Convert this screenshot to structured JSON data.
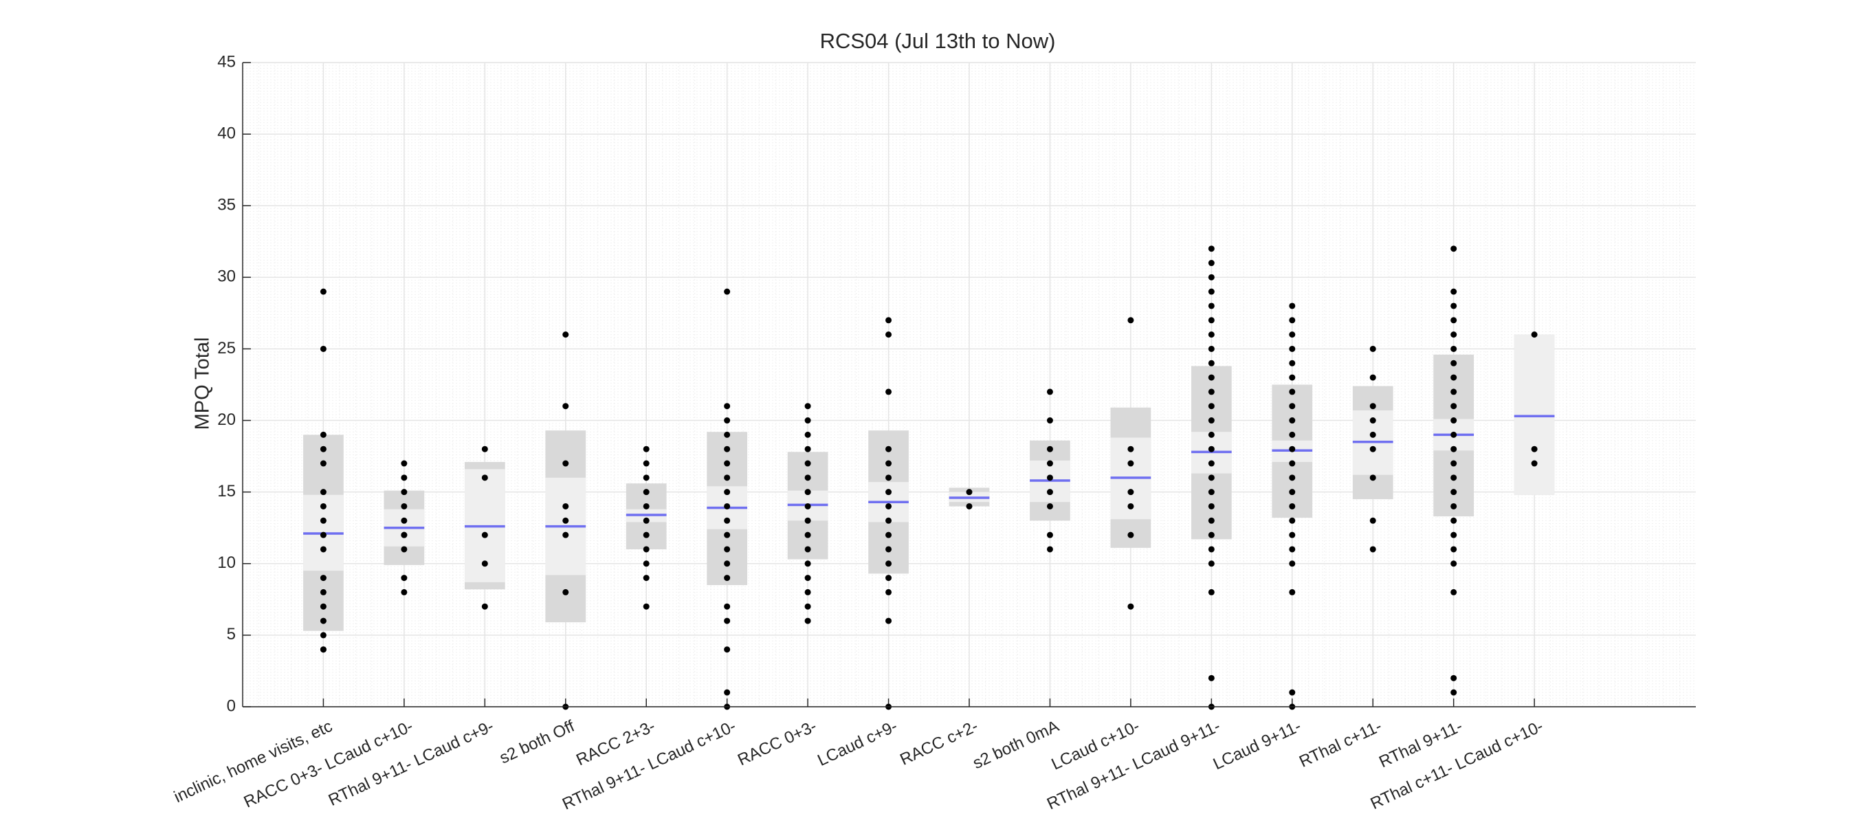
{
  "chart_data": {
    "type": "notboxplot",
    "title": "RCS04 (Jul 13th to Now)",
    "ylabel": "MPQ Total",
    "xlim": [
      0,
      18
    ],
    "ylim": [
      0,
      45
    ],
    "yticks": [
      0,
      5,
      10,
      15,
      20,
      25,
      30,
      35,
      40,
      45
    ],
    "grid": true,
    "colors": {
      "sd": "#d9d9d9",
      "ci": "#efefef",
      "mean": "#6f6ff0",
      "point": "#000000"
    },
    "categories": [
      "inclinic, home visits, etc",
      "RACC 0+3- LCaud c+10-",
      "RThal 9+11- LCaud c+9-",
      "s2 both Off",
      "RACC 2+3-",
      "RThal 9+11- LCaud c+10-",
      "RACC 0+3-",
      "LCaud c+9-",
      "RACC c+2-",
      "s2 both 0mA",
      "LCaud c+10-",
      "RThal 9+11- LCaud 9+11-",
      "LCaud 9+11-",
      "RThal c+11-",
      "RThal 9+11-",
      "RThal c+11- LCaud c+10-"
    ],
    "groups": [
      {
        "mean": 12.1,
        "sd_low": 5.3,
        "sd_high": 19.0,
        "ci_low": 9.5,
        "ci_high": 14.8,
        "points": [
          29,
          25,
          19,
          18,
          17,
          15,
          14,
          13,
          12,
          11,
          9,
          8,
          7,
          6,
          5,
          4,
          4
        ]
      },
      {
        "mean": 12.5,
        "sd_low": 9.9,
        "sd_high": 15.1,
        "ci_low": 11.2,
        "ci_high": 13.8,
        "points": [
          17,
          16,
          15,
          14,
          13,
          12,
          12,
          11,
          9,
          8
        ]
      },
      {
        "mean": 12.6,
        "sd_low": 8.2,
        "sd_high": 17.1,
        "ci_low": 8.7,
        "ci_high": 16.6,
        "points": [
          18,
          16,
          12,
          10,
          7
        ]
      },
      {
        "mean": 12.6,
        "sd_low": 5.9,
        "sd_high": 19.3,
        "ci_low": 9.2,
        "ci_high": 16.0,
        "points": [
          26,
          21,
          17,
          14,
          13,
          12,
          8,
          0
        ]
      },
      {
        "mean": 13.4,
        "sd_low": 11.0,
        "sd_high": 15.6,
        "ci_low": 12.9,
        "ci_high": 13.8,
        "points": [
          18,
          17,
          16,
          15,
          14,
          13,
          12,
          11,
          10,
          9,
          7
        ]
      },
      {
        "mean": 13.9,
        "sd_low": 8.5,
        "sd_high": 19.2,
        "ci_low": 12.4,
        "ci_high": 15.4,
        "points": [
          29,
          21,
          20,
          19,
          18,
          17,
          16,
          15,
          14,
          13,
          12,
          11,
          10,
          9,
          7,
          6,
          4,
          1,
          0
        ]
      },
      {
        "mean": 14.1,
        "sd_low": 10.3,
        "sd_high": 17.8,
        "ci_low": 13.0,
        "ci_high": 15.1,
        "points": [
          21,
          20,
          19,
          18,
          17,
          16,
          15,
          14,
          13,
          12,
          11,
          10,
          9,
          8,
          7,
          6
        ]
      },
      {
        "mean": 14.3,
        "sd_low": 9.3,
        "sd_high": 19.3,
        "ci_low": 12.9,
        "ci_high": 15.7,
        "points": [
          27,
          26,
          22,
          18,
          17,
          16,
          15,
          14,
          13,
          12,
          11,
          10,
          9,
          8,
          6,
          0
        ]
      },
      {
        "mean": 14.6,
        "sd_low": 14.0,
        "sd_high": 15.3,
        "ci_low": 14.3,
        "ci_high": 15.0,
        "points": [
          15,
          14
        ]
      },
      {
        "mean": 15.8,
        "sd_low": 13.0,
        "sd_high": 18.6,
        "ci_low": 14.3,
        "ci_high": 17.2,
        "points": [
          22,
          20,
          18,
          17,
          16,
          15,
          14,
          12,
          11
        ]
      },
      {
        "mean": 16.0,
        "sd_low": 11.1,
        "sd_high": 20.9,
        "ci_low": 13.1,
        "ci_high": 18.8,
        "points": [
          27,
          18,
          17,
          15,
          14,
          12,
          7
        ]
      },
      {
        "mean": 17.8,
        "sd_low": 11.7,
        "sd_high": 23.8,
        "ci_low": 16.3,
        "ci_high": 19.2,
        "points": [
          32,
          31,
          30,
          29,
          28,
          27,
          26,
          25,
          24,
          23,
          22,
          21,
          20,
          19,
          18,
          17,
          16,
          15,
          14,
          13,
          12,
          11,
          10,
          8,
          2,
          0
        ]
      },
      {
        "mean": 17.9,
        "sd_low": 13.2,
        "sd_high": 22.5,
        "ci_low": 17.1,
        "ci_high": 18.6,
        "points": [
          28,
          27,
          26,
          25,
          24,
          23,
          22,
          21,
          20,
          19,
          18,
          17,
          16,
          15,
          14,
          13,
          12,
          11,
          10,
          8,
          1,
          0
        ]
      },
      {
        "mean": 18.5,
        "sd_low": 14.5,
        "sd_high": 22.4,
        "ci_low": 16.2,
        "ci_high": 20.7,
        "points": [
          25,
          23,
          21,
          20,
          19,
          18,
          16,
          13,
          11
        ]
      },
      {
        "mean": 19.0,
        "sd_low": 13.3,
        "sd_high": 24.6,
        "ci_low": 17.9,
        "ci_high": 20.1,
        "points": [
          32,
          29,
          28,
          27,
          26,
          25,
          24,
          23,
          22,
          21,
          20,
          19,
          18,
          17,
          16,
          15,
          14,
          13,
          12,
          11,
          10,
          8,
          2,
          1
        ]
      },
      {
        "mean": 20.3,
        "sd_low": 14.8,
        "sd_high": 26.0,
        "ci_low": 14.8,
        "ci_high": 26.0,
        "points": [
          26,
          18,
          17
        ]
      }
    ]
  }
}
